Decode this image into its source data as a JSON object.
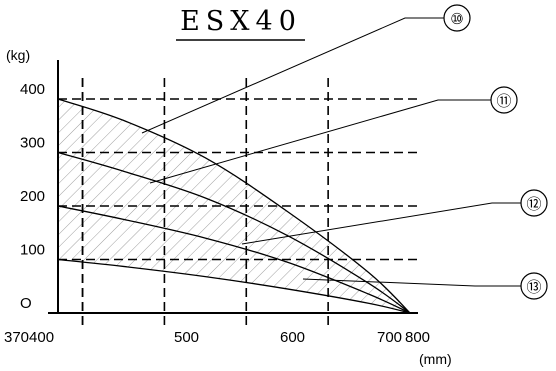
{
  "chart_data": {
    "type": "line",
    "title": "ESX40",
    "ylabel": "(kg)",
    "xlabel": "(mm)",
    "xlim": [
      370,
      800
    ],
    "ylim": [
      0,
      400
    ],
    "x_ticks": [
      370,
      400,
      500,
      600,
      700,
      800
    ],
    "x_tick_labels": [
      "370",
      "400",
      "500",
      "600",
      "700",
      "800"
    ],
    "y_ticks": [
      0,
      100,
      200,
      300,
      400
    ],
    "y_tick_labels": [
      "O",
      "100",
      "200",
      "300",
      "400"
    ],
    "grid": true,
    "series": [
      {
        "name": "⑩",
        "points": [
          [
            370,
            400
          ],
          [
            450,
            360
          ],
          [
            550,
            290
          ],
          [
            650,
            190
          ],
          [
            750,
            75
          ],
          [
            800,
            0
          ]
        ]
      },
      {
        "name": "⑪",
        "points": [
          [
            370,
            300
          ],
          [
            450,
            265
          ],
          [
            550,
            215
          ],
          [
            650,
            145
          ],
          [
            750,
            55
          ],
          [
            800,
            0
          ]
        ]
      },
      {
        "name": "⑫",
        "points": [
          [
            370,
            200
          ],
          [
            450,
            175
          ],
          [
            550,
            140
          ],
          [
            650,
            95
          ],
          [
            750,
            35
          ],
          [
            800,
            0
          ]
        ]
      },
      {
        "name": "⑬",
        "points": [
          [
            370,
            100
          ],
          [
            450,
            87
          ],
          [
            550,
            68
          ],
          [
            650,
            45
          ],
          [
            750,
            18
          ],
          [
            800,
            0
          ]
        ]
      }
    ]
  }
}
